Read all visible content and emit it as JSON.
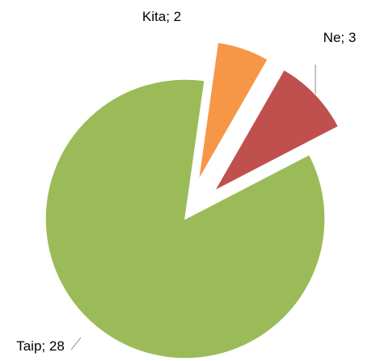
{
  "chart_data": {
    "type": "pie",
    "categories": [
      "Taip",
      "Ne",
      "Kita"
    ],
    "values": [
      28,
      3,
      2
    ],
    "colors": [
      "#9bbb59",
      "#c0504d",
      "#f79646"
    ],
    "label_separator": "; "
  }
}
